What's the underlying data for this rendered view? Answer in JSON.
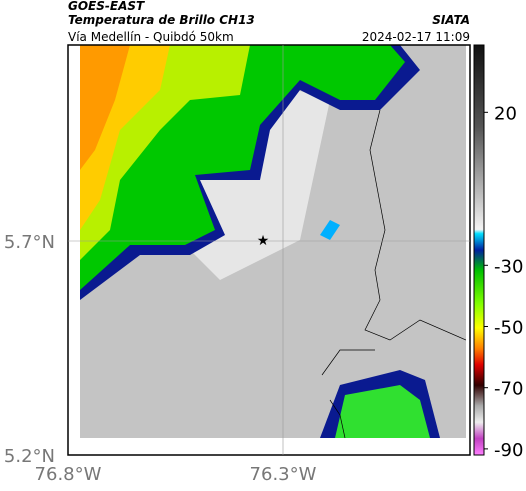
{
  "header": {
    "satellite": "GOES-EAST",
    "product": "Temperatura de Brillo CH13",
    "source": "SIATA",
    "region": "Vía Medellín - Quibdó 50km",
    "datetime": "2024-02-17 11:09"
  },
  "axes": {
    "y_labels": [
      "5.7°N",
      "5.2°N"
    ],
    "x_labels": [
      "76.8°W",
      "76.3°W"
    ]
  },
  "colorbar": {
    "lim": [
      42,
      -92
    ],
    "ticks": [
      20,
      -30,
      -50,
      -70,
      -90
    ]
  }
}
